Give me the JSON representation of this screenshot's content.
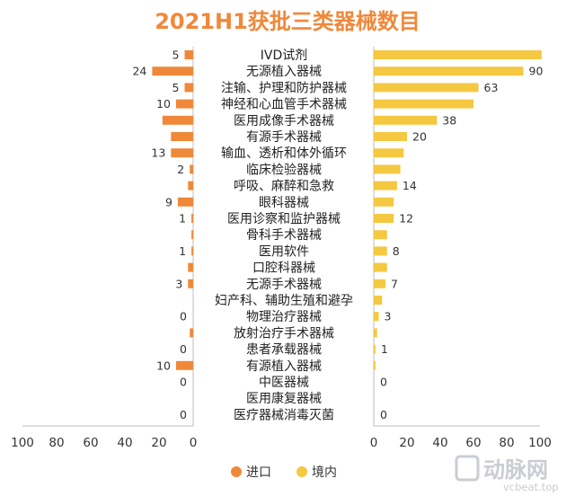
{
  "chart_data": {
    "type": "bar",
    "title": "2021H1获批三类器械数目",
    "categories": [
      "IVD试剂",
      "无源植入器械",
      "注输、护理和防护器械",
      "神经和心血管手术器械",
      "医用成像手术器械",
      "有源手术器械",
      "输血、透析和体外循环",
      "临床检验器械",
      "呼吸、麻醉和急救",
      "眼科器械",
      "医用诊察和监护器械",
      "骨科手术器械",
      "医用软件",
      "口腔科器械",
      "无源手术器械",
      "妇产科、辅助生殖和避孕",
      "物理治疗器械",
      "放射治疗手术器械",
      "患者承载器械",
      "有源植入器械",
      "中医器械",
      "医用康复器械",
      "医疗器械消毒灭菌"
    ],
    "series": [
      {
        "name": "进口",
        "color": "#f0883a",
        "values": [
          5,
          24,
          5,
          10,
          18,
          13,
          13,
          2,
          3,
          9,
          1,
          1,
          1,
          3,
          3,
          0,
          0,
          2,
          0,
          10,
          0,
          0,
          0
        ],
        "labels": [
          "5",
          "24",
          "5",
          "10",
          "",
          "",
          "13",
          "2",
          "",
          "9",
          "1",
          "",
          "1",
          "",
          "3",
          "",
          "0",
          "",
          "0",
          "10",
          "0",
          "",
          "0"
        ]
      },
      {
        "name": "境内",
        "color": "#f5c842",
        "values": [
          101,
          90,
          63,
          60,
          38,
          20,
          18,
          16,
          14,
          12,
          12,
          8,
          8,
          8,
          7,
          5,
          3,
          2,
          1,
          1,
          0,
          0,
          0
        ],
        "labels": [
          "",
          "90",
          "63",
          "",
          "38",
          "20",
          "",
          "",
          "14",
          "",
          "12",
          "",
          "8",
          "",
          "7",
          "",
          "3",
          "",
          "1",
          "",
          "0",
          "",
          "0"
        ]
      }
    ],
    "left_axis": {
      "ticks": [
        "100",
        "80",
        "60",
        "40",
        "20",
        "0"
      ],
      "range": [
        0,
        100
      ]
    },
    "right_axis": {
      "ticks": [
        "0",
        "20",
        "40",
        "60",
        "80",
        "100"
      ],
      "range": [
        0,
        100
      ]
    },
    "legend_position": "bottom-center",
    "grid": false
  },
  "watermark": {
    "logo_text": "动脉网",
    "url": "vcbeat.top"
  }
}
